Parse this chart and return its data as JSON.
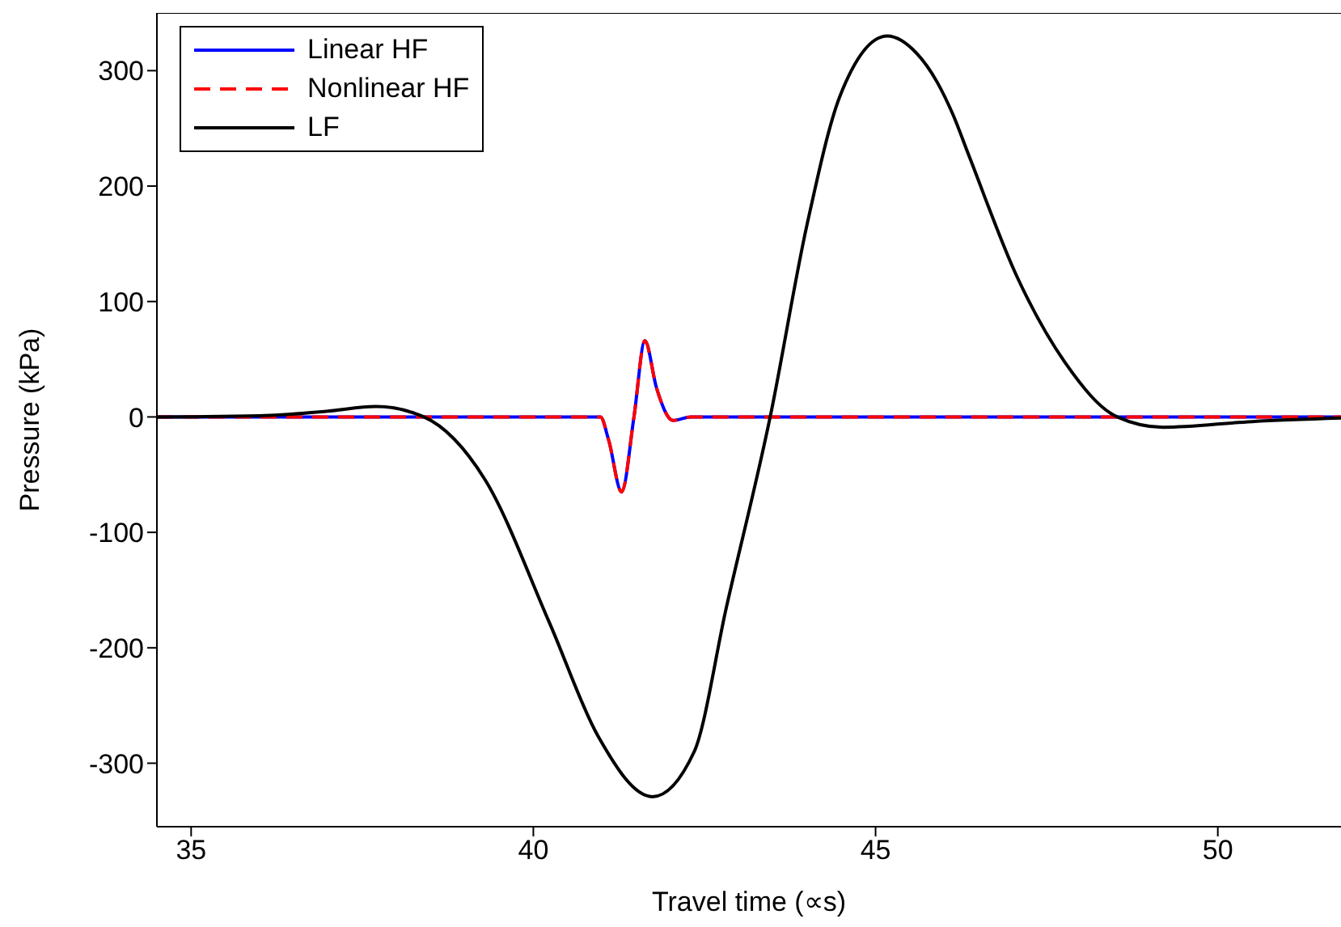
{
  "chart_data": {
    "type": "line",
    "xlabel": "Travel time (∝s)",
    "ylabel": "Pressure (kPa)",
    "xlim": [
      34.5,
      51.8
    ],
    "ylim": [
      -355,
      350
    ],
    "xticks": [
      35,
      40,
      45,
      50
    ],
    "yticks": [
      -300,
      -200,
      -100,
      0,
      100,
      200,
      300
    ],
    "grid": false,
    "legend": "top left",
    "marker": "none",
    "series": [
      {
        "name": "Linear HF",
        "color": "#0000ff",
        "line_style": "solid",
        "x": [
          34.5,
          40.5,
          40.98,
          41.1,
          41.29,
          41.47,
          41.63,
          41.8,
          42.04,
          42.3,
          51.8
        ],
        "values": [
          0,
          0,
          0,
          -20,
          -65,
          0,
          66,
          25,
          -3,
          0,
          0
        ]
      },
      {
        "name": "Nonlinear HF",
        "color": "#ff0000",
        "line_style": "dashed",
        "x": [
          34.5,
          40.5,
          40.98,
          41.1,
          41.29,
          41.47,
          41.63,
          41.8,
          42.04,
          42.3,
          51.8
        ],
        "values": [
          0,
          0,
          0,
          -20,
          -65,
          0,
          66,
          25,
          -3,
          0,
          0
        ]
      },
      {
        "name": "LF",
        "color": "#000000",
        "line_style": "solid",
        "x": [
          34.5,
          36,
          37,
          37.7,
          38.4,
          39.29,
          40.24,
          40.94,
          41.74,
          42.35,
          42.82,
          43.46,
          44,
          44.48,
          45.17,
          45.6,
          45.9,
          46.13,
          46.36,
          47.07,
          47.77,
          48.53,
          49.2,
          50.5,
          51.8
        ],
        "values": [
          0,
          1,
          5,
          9,
          0,
          -54,
          -179,
          -276,
          -329,
          -290,
          -165,
          0,
          167,
          278,
          330,
          315,
          290,
          262,
          227,
          121,
          47,
          0,
          -9,
          -4,
          -1
        ]
      }
    ]
  }
}
